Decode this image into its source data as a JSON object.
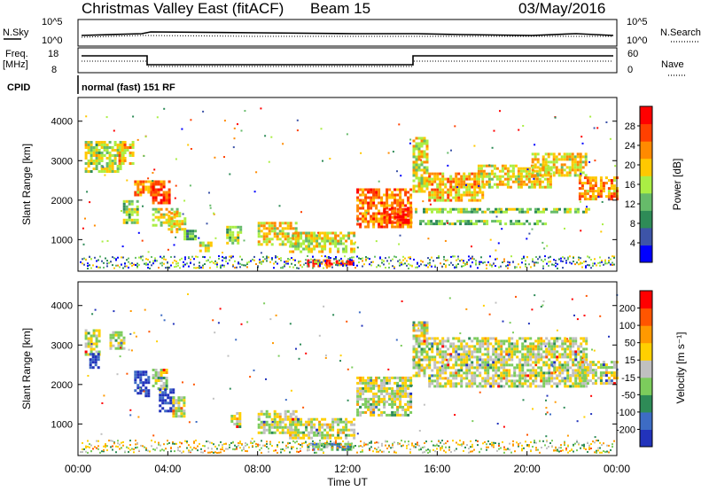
{
  "header": {
    "title": "Christmas Valley East (fitACF)",
    "beam": "Beam 15",
    "date": "03/May/2016"
  },
  "sky_panel": {
    "left_label": "N.Sky",
    "right_label": "N.Search",
    "left_ticks": [
      "10^5",
      "10^0"
    ],
    "right_ticks": [
      "10^5",
      "10^0"
    ]
  },
  "freq_panel": {
    "left_label_1": "Freq.",
    "left_label_2": "[MHz]",
    "right_label": "Nave",
    "left_ticks": [
      "18",
      "8"
    ],
    "right_ticks": [
      "60",
      "0"
    ]
  },
  "cpid": {
    "label": "CPID",
    "value": "normal (fast) 151 RF"
  },
  "colors": {
    "power": [
      "#0000ff",
      "#3d54a8",
      "#2e8b57",
      "#66bb6a",
      "#aaee44",
      "#ffc800",
      "#ff8a00",
      "#ff4000",
      "#ff0000"
    ],
    "velocity": [
      "#2233bb",
      "#3d6cc4",
      "#2e8b57",
      "#7ccc5c",
      "#c0c0c0",
      "#ffd000",
      "#ff9900",
      "#ff5500",
      "#ff0000"
    ]
  },
  "chart_data": [
    {
      "type": "heatmap",
      "name": "power",
      "ylabel": "Slant Range [km]",
      "yticks": [
        "1000",
        "2000",
        "3000",
        "4000"
      ],
      "ylim": [
        200,
        4600
      ],
      "colorbar": {
        "label": "Power [dB]",
        "ticks": [
          "4",
          "8",
          "12",
          "16",
          "20",
          "24",
          "28"
        ],
        "range": [
          0,
          32
        ]
      },
      "regions": [
        {
          "t": [
            0.3,
            2.0
          ],
          "r": [
            2750,
            3500
          ],
          "level": 0.5
        },
        {
          "t": [
            1.8,
            2.4
          ],
          "r": [
            2900,
            3500
          ],
          "level": 0.65
        },
        {
          "t": [
            2.5,
            3.5
          ],
          "r": [
            2100,
            2500
          ],
          "level": 0.7
        },
        {
          "t": [
            2.0,
            2.6
          ],
          "r": [
            1400,
            2000
          ],
          "level": 0.45
        },
        {
          "t": [
            3.3,
            4.1
          ],
          "r": [
            1900,
            2500
          ],
          "level": 0.8
        },
        {
          "t": [
            3.3,
            4.4
          ],
          "r": [
            1350,
            1800
          ],
          "level": 0.55
        },
        {
          "t": [
            4.0,
            4.8
          ],
          "r": [
            1200,
            1700
          ],
          "level": 0.6
        },
        {
          "t": [
            4.7,
            5.2
          ],
          "r": [
            1000,
            1250
          ],
          "level": 0.35
        },
        {
          "t": [
            5.4,
            5.9
          ],
          "r": [
            700,
            950
          ],
          "level": 0.55
        },
        {
          "t": [
            6.6,
            7.3
          ],
          "r": [
            900,
            1350
          ],
          "level": 0.45
        },
        {
          "t": [
            8.0,
            9.7
          ],
          "r": [
            900,
            1450
          ],
          "level": 0.6
        },
        {
          "t": [
            9.4,
            12.3
          ],
          "r": [
            700,
            1200
          ],
          "level": 0.55
        },
        {
          "t": [
            10.2,
            11.2
          ],
          "r": [
            350,
            500
          ],
          "level": 0.85
        },
        {
          "t": [
            11.0,
            12.2
          ],
          "r": [
            350,
            480
          ],
          "level": 0.95
        },
        {
          "t": [
            12.4,
            14.8
          ],
          "r": [
            1300,
            2300
          ],
          "level": 0.75
        },
        {
          "t": [
            13.6,
            14.8
          ],
          "r": [
            1450,
            1800
          ],
          "level": 0.9
        },
        {
          "t": [
            14.9,
            15.6
          ],
          "r": [
            2200,
            3600
          ],
          "level": 0.55
        },
        {
          "t": [
            15.6,
            18.0
          ],
          "r": [
            2000,
            2700
          ],
          "level": 0.65
        },
        {
          "t": [
            17.8,
            21.0
          ],
          "r": [
            2300,
            2900
          ],
          "level": 0.6
        },
        {
          "t": [
            20.2,
            22.6
          ],
          "r": [
            2600,
            3200
          ],
          "level": 0.6
        },
        {
          "t": [
            22.3,
            24.0
          ],
          "r": [
            2050,
            2600
          ],
          "level": 0.72
        },
        {
          "t": [
            15.0,
            22.8
          ],
          "r": [
            1700,
            1800
          ],
          "level": 0.45
        },
        {
          "t": [
            15.2,
            20.8
          ],
          "r": [
            1400,
            1500
          ],
          "level": 0.4
        }
      ]
    },
    {
      "type": "heatmap",
      "name": "velocity",
      "ylabel": "Slant Range [km]",
      "yticks": [
        "1000",
        "2000",
        "3000",
        "4000"
      ],
      "ylim": [
        200,
        4600
      ],
      "xlabel": "Time UT",
      "xticks": [
        "00:00",
        "04:00",
        "08:00",
        "12:00",
        "16:00",
        "20:00",
        "00:00"
      ],
      "xlim": [
        0,
        24
      ],
      "colorbar": {
        "label": "Velocity [m s⁻¹]",
        "ticks": [
          "200",
          "100",
          "50",
          "15",
          "-15",
          "-50",
          "-100",
          "-200"
        ],
        "range": [
          -250,
          250
        ]
      },
      "regions": [
        {
          "t": [
            0.3,
            1.0
          ],
          "r": [
            2750,
            3400
          ],
          "level": 0.5
        },
        {
          "t": [
            0.5,
            0.9
          ],
          "r": [
            2400,
            2800
          ],
          "level": 0.05
        },
        {
          "t": [
            1.4,
            2.0
          ],
          "r": [
            2900,
            3350
          ],
          "level": 0.5
        },
        {
          "t": [
            3.3,
            4.0
          ],
          "r": [
            1900,
            2400
          ],
          "level": 0.5
        },
        {
          "t": [
            2.5,
            3.2
          ],
          "r": [
            1700,
            2350
          ],
          "level": 0.05
        },
        {
          "t": [
            3.6,
            4.3
          ],
          "r": [
            1350,
            1900
          ],
          "level": 0.05
        },
        {
          "t": [
            4.2,
            4.7
          ],
          "r": [
            1200,
            1700
          ],
          "level": 0.5
        },
        {
          "t": [
            6.8,
            7.2
          ],
          "r": [
            950,
            1300
          ],
          "level": 0.5
        },
        {
          "t": [
            8.0,
            9.7
          ],
          "r": [
            800,
            1350
          ],
          "level": 0.5
        },
        {
          "t": [
            9.4,
            12.3
          ],
          "r": [
            650,
            1150
          ],
          "level": 0.5
        },
        {
          "t": [
            10.2,
            12.1
          ],
          "r": [
            350,
            520
          ],
          "level": 0.32
        },
        {
          "t": [
            12.4,
            14.8
          ],
          "r": [
            1250,
            2200
          ],
          "level": 0.5
        },
        {
          "t": [
            14.9,
            15.6
          ],
          "r": [
            2200,
            3600
          ],
          "level": 0.5
        },
        {
          "t": [
            15.6,
            22.6
          ],
          "r": [
            1950,
            3200
          ],
          "level": 0.5
        },
        {
          "t": [
            22.3,
            24.0
          ],
          "r": [
            2000,
            2600
          ],
          "level": 0.5
        }
      ]
    }
  ]
}
